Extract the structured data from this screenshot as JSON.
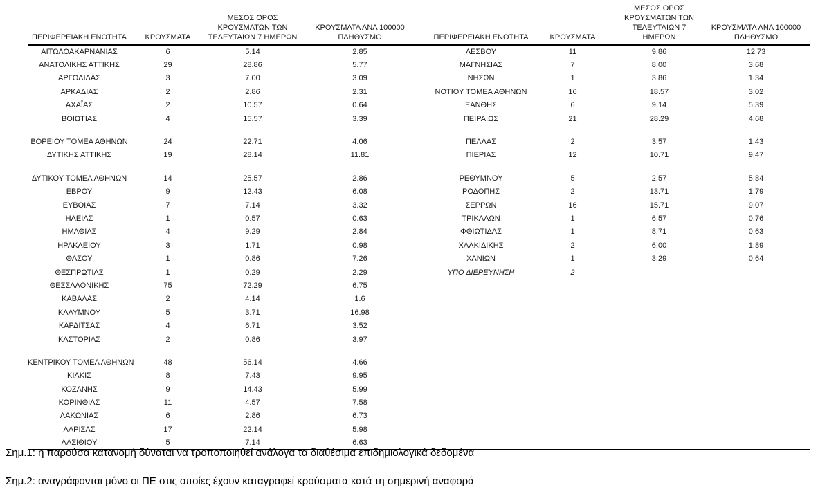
{
  "table": {
    "headers": {
      "region": "ΠΕΡΙΦΕΡΕΙΑΚΗ ΕΝΟΤΗΤΑ",
      "cases": "ΚΡΟΥΣΜΑΤΑ",
      "avg7": "ΜΕΣΟΣ ΟΡΟΣ\nΚΡΟΥΣΜΑΤΩΝ ΤΩΝ\nΤΕΛΕΥΤΑΙΩΝ 7 ΗΜΕΡΩΝ",
      "per100k": "ΚΡΟΥΣΜΑΤΑ ΑΝΑ 100000\nΠΛΗΘΥΣΜΟ"
    },
    "rows": [
      {
        "l": [
          "ΑΙΤΩΛΟΑΚΑΡΝΑΝΙΑΣ",
          "6",
          "5.14",
          "2.85"
        ],
        "r": [
          "ΛΕΣΒΟΥ",
          "11",
          "9.86",
          "12.73"
        ]
      },
      {
        "l": [
          "ΑΝΑΤΟΛΙΚΗΣ ΑΤΤΙΚΗΣ",
          "29",
          "28.86",
          "5.77"
        ],
        "r": [
          "ΜΑΓΝΗΣΙΑΣ",
          "7",
          "8.00",
          "3.68"
        ]
      },
      {
        "l": [
          "ΑΡΓΟΛΙΔΑΣ",
          "3",
          "7.00",
          "3.09"
        ],
        "r": [
          "ΝΗΣΩΝ",
          "1",
          "3.86",
          "1.34"
        ]
      },
      {
        "l": [
          "ΑΡΚΑΔΙΑΣ",
          "2",
          "2.86",
          "2.31"
        ],
        "r": [
          "ΝΟΤΙΟΥ ΤΟΜΕΑ ΑΘΗΝΩΝ",
          "16",
          "18.57",
          "3.02"
        ]
      },
      {
        "l": [
          "ΑΧΑΪΑΣ",
          "2",
          "10.57",
          "0.64"
        ],
        "r": [
          "ΞΑΝΘΗΣ",
          "6",
          "9.14",
          "5.39"
        ]
      },
      {
        "l": [
          "ΒΟΙΩΤΙΑΣ",
          "4",
          "15.57",
          "3.39"
        ],
        "r": [
          "ΠΕΙΡΑΙΩΣ",
          "21",
          "28.29",
          "4.68"
        ]
      },
      {
        "spacer": true
      },
      {
        "l": [
          "ΒΟΡΕΙΟΥ ΤΟΜΕΑ ΑΘΗΝΩΝ",
          "24",
          "22.71",
          "4.06"
        ],
        "r": [
          "ΠΕΛΛΑΣ",
          "2",
          "3.57",
          "1.43"
        ]
      },
      {
        "l": [
          "ΔΥΤΙΚΗΣ ΑΤΤΙΚΗΣ",
          "19",
          "28.14",
          "11.81"
        ],
        "r": [
          "ΠΙΕΡΙΑΣ",
          "12",
          "10.71",
          "9.47"
        ]
      },
      {
        "spacer": true
      },
      {
        "l": [
          "ΔΥΤΙΚΟΥ ΤΟΜΕΑ ΑΘΗΝΩΝ",
          "14",
          "25.57",
          "2.86"
        ],
        "r": [
          "ΡΕΘΥΜΝΟΥ",
          "5",
          "2.57",
          "5.84"
        ]
      },
      {
        "l": [
          "ΕΒΡΟΥ",
          "9",
          "12.43",
          "6.08"
        ],
        "r": [
          "ΡΟΔΟΠΗΣ",
          "2",
          "13.71",
          "1.79"
        ]
      },
      {
        "l": [
          "ΕΥΒΟΙΑΣ",
          "7",
          "7.14",
          "3.32"
        ],
        "r": [
          "ΣΕΡΡΩΝ",
          "16",
          "15.71",
          "9.07"
        ]
      },
      {
        "l": [
          "ΗΛΕΙΑΣ",
          "1",
          "0.57",
          "0.63"
        ],
        "r": [
          "ΤΡΙΚΑΛΩΝ",
          "1",
          "6.57",
          "0.76"
        ]
      },
      {
        "l": [
          "ΗΜΑΘΙΑΣ",
          "4",
          "9.29",
          "2.84"
        ],
        "r": [
          "ΦΘΙΩΤΙΔΑΣ",
          "1",
          "8.71",
          "0.63"
        ]
      },
      {
        "l": [
          "ΗΡΑΚΛΕΙΟΥ",
          "3",
          "1.71",
          "0.98"
        ],
        "r": [
          "ΧΑΛΚΙΔΙΚΗΣ",
          "2",
          "6.00",
          "1.89"
        ]
      },
      {
        "l": [
          "ΘΑΣΟΥ",
          "1",
          "0.86",
          "7.26"
        ],
        "r": [
          "ΧΑΝΙΩΝ",
          "1",
          "3.29",
          "0.64"
        ]
      },
      {
        "l": [
          "ΘΕΣΠΡΩΤΙΑΣ",
          "1",
          "0.29",
          "2.29"
        ],
        "r": [
          "ΥΠΟ ΔΙΕΡΕΥΝΗΣΗ",
          "2",
          "",
          ""
        ],
        "r_italic": true
      },
      {
        "l": [
          "ΘΕΣΣΑΛΟΝΙΚΗΣ",
          "75",
          "72.29",
          "6.75"
        ]
      },
      {
        "l": [
          "ΚΑΒΑΛΑΣ",
          "2",
          "4.14",
          "1.6"
        ]
      },
      {
        "l": [
          "ΚΑΛΥΜΝΟΥ",
          "5",
          "3.71",
          "16.98"
        ]
      },
      {
        "l": [
          "ΚΑΡΔΙΤΣΑΣ",
          "4",
          "6.71",
          "3.52"
        ]
      },
      {
        "l": [
          "ΚΑΣΤΟΡΙΑΣ",
          "2",
          "0.86",
          "3.97"
        ]
      },
      {
        "spacer": true
      },
      {
        "l": [
          "ΚΕΝΤΡΙΚΟΥ ΤΟΜΕΑ ΑΘΗΝΩΝ",
          "48",
          "56.14",
          "4.66"
        ]
      },
      {
        "l": [
          "ΚΙΛΚΙΣ",
          "8",
          "7.43",
          "9.95"
        ]
      },
      {
        "l": [
          "ΚΟΖΑΝΗΣ",
          "9",
          "14.43",
          "5.99"
        ]
      },
      {
        "l": [
          "ΚΟΡΙΝΘΙΑΣ",
          "11",
          "4.57",
          "7.58"
        ]
      },
      {
        "l": [
          "ΛΑΚΩΝΙΑΣ",
          "6",
          "2.86",
          "6.73"
        ]
      },
      {
        "l": [
          "ΛΑΡΙΣΑΣ",
          "17",
          "22.14",
          "5.98"
        ]
      },
      {
        "l": [
          "ΛΑΣΙΘΙΟΥ",
          "5",
          "7.14",
          "6.63"
        ]
      }
    ]
  },
  "notes": {
    "note1": "Σημ.1: η παρούσα κατανομή δύναται να τροποποιηθεί ανάλογα τα διαθέσιμα επιδημιολογικά δεδομένα",
    "note2": "Σημ.2: αναγράφονται μόνο οι ΠΕ στις οποίες έχουν καταγραφεί κρούσματα κατά τη σημερινή αναφορά"
  },
  "colors": {
    "top_rule": "#7f7f7f",
    "heavy_rule": "#000000",
    "text": "#1a1a1a"
  }
}
